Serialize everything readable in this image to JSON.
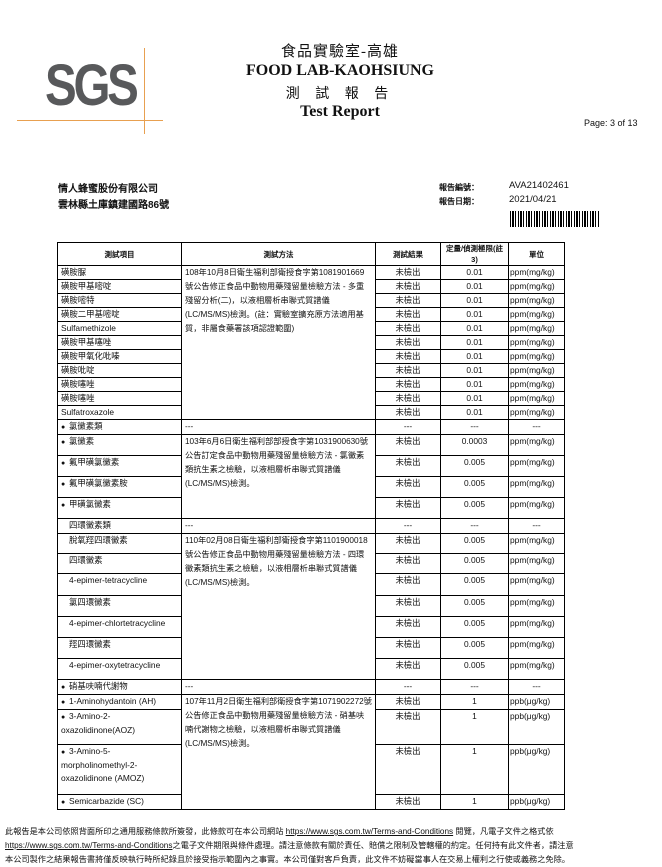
{
  "header": {
    "logo": "SGS",
    "lab_zh": "食品實驗室-高雄",
    "lab_en": "FOOD LAB-KAOHSIUNG",
    "report_zh": "測 試 報 告",
    "report_en": "Test Report",
    "page": "Page: 3 of 13"
  },
  "client": {
    "name": "情人蜂蜜股份有限公司",
    "address": "雲林縣土庫鎮建國路86號"
  },
  "report_info": {
    "number_label": "報告編號：",
    "number": "AVA21402461",
    "date_label": "報告日期：",
    "date": "2021/04/21"
  },
  "table": {
    "headers": [
      "測試項目",
      "測試方法",
      "測試結果",
      "定量/偵測極限(註3)",
      "單位"
    ],
    "groups": [
      {
        "header": null,
        "method": "108年10月8日衛生福利部衛授食字第1081901669號公告修正食品中動物用藥殘留量檢驗方法 - 多重殘留分析(二)，以液相層析串聯式質譜儀(LC/MS/MS)檢測。(註：實驗室擴充原方法適用基質，非屬食藥署該項認證範圍)",
        "rows": [
          {
            "item": "磺胺脲",
            "result": "未檢出",
            "limit": "0.01",
            "unit": "ppm(mg/kg)"
          },
          {
            "item": "磺胺甲基嘧啶",
            "result": "未檢出",
            "limit": "0.01",
            "unit": "ppm(mg/kg)"
          },
          {
            "item": "磺胺嘧特",
            "result": "未檢出",
            "limit": "0.01",
            "unit": "ppm(mg/kg)"
          },
          {
            "item": "磺胺二甲基嘧啶",
            "result": "未檢出",
            "limit": "0.01",
            "unit": "ppm(mg/kg)"
          },
          {
            "item": "Sulfamethizole",
            "result": "未檢出",
            "limit": "0.01",
            "unit": "ppm(mg/kg)"
          },
          {
            "item": "磺胺甲基噻唑",
            "result": "未檢出",
            "limit": "0.01",
            "unit": "ppm(mg/kg)"
          },
          {
            "item": "磺胺甲氧化吡嗪",
            "result": "未檢出",
            "limit": "0.01",
            "unit": "ppm(mg/kg)"
          },
          {
            "item": "磺胺吡啶",
            "result": "未檢出",
            "limit": "0.01",
            "unit": "ppm(mg/kg)"
          },
          {
            "item": "磺胺噻唑",
            "result": "未檢出",
            "limit": "0.01",
            "unit": "ppm(mg/kg)"
          },
          {
            "item": "磺胺噻唑",
            "result": "未檢出",
            "limit": "0.01",
            "unit": "ppm(mg/kg)"
          },
          {
            "item": "Sulfatroxazole",
            "result": "未檢出",
            "limit": "0.01",
            "unit": "ppm(mg/kg)"
          }
        ]
      },
      {
        "header": {
          "item": "氯黴素類",
          "bullet": true,
          "method": "---",
          "result": "---",
          "limit": "---",
          "unit": "---"
        },
        "method": "103年6月6日衛生福利部部授食字第1031900630號公告訂定食品中動物用藥殘留量檢驗方法 - 氯黴素類抗生素之檢驗，以液相層析串聯式質譜儀(LC/MS/MS)檢測。",
        "rows": [
          {
            "item": "氯黴素",
            "bullet": true,
            "result": "未檢出",
            "limit": "0.0003",
            "unit": "ppm(mg/kg)"
          },
          {
            "item": "氟甲磺氯黴素",
            "bullet": true,
            "result": "未檢出",
            "limit": "0.005",
            "unit": "ppm(mg/kg)"
          },
          {
            "item": "氟甲磺氯黴素胺",
            "bullet": true,
            "result": "未檢出",
            "limit": "0.005",
            "unit": "ppm(mg/kg)"
          },
          {
            "item": "甲磺氯黴素",
            "bullet": true,
            "result": "未檢出",
            "limit": "0.005",
            "unit": "ppm(mg/kg)"
          }
        ]
      },
      {
        "header": {
          "item": "四環黴素類",
          "bullet": false,
          "method": "---",
          "result": "---",
          "limit": "---",
          "unit": "---"
        },
        "method": "110年02月08日衛生福利部衛授食字第1101900018號公告修正食品中動物用藥殘留量檢驗方法 - 四環黴素類抗生素之檢驗，以液相層析串聯式質譜儀(LC/MS/MS)檢測。",
        "rows": [
          {
            "item": "脫氧羥四環黴素",
            "result": "未檢出",
            "limit": "0.005",
            "unit": "ppm(mg/kg)"
          },
          {
            "item": "四環黴素",
            "result": "未檢出",
            "limit": "0.005",
            "unit": "ppm(mg/kg)"
          },
          {
            "item": "4-epimer-tetracycline",
            "result": "未檢出",
            "limit": "0.005",
            "unit": "ppm(mg/kg)"
          },
          {
            "item": "氯四環黴素",
            "result": "未檢出",
            "limit": "0.005",
            "unit": "ppm(mg/kg)"
          },
          {
            "item": "4-epimer-chlortetracycline",
            "result": "未檢出",
            "limit": "0.005",
            "unit": "ppm(mg/kg)"
          },
          {
            "item": "羥四環黴素",
            "result": "未檢出",
            "limit": "0.005",
            "unit": "ppm(mg/kg)"
          },
          {
            "item": "4-epimer-oxytetracycline",
            "result": "未檢出",
            "limit": "0.005",
            "unit": "ppm(mg/kg)"
          }
        ]
      },
      {
        "header": {
          "item": "硝基呋喃代謝物",
          "bullet": true,
          "method": "---",
          "result": "---",
          "limit": "---",
          "unit": "---"
        },
        "method": "107年11月2日衛生福利部衛授食字第1071902272號公告修正食品中動物用藥殘留量檢驗方法 - 硝基呋喃代謝物之檢驗，以液相層析串聯式質譜儀(LC/MS/MS)檢測。",
        "rows": [
          {
            "item": "1-Aminohydantoin (AH)",
            "bullet": true,
            "result": "未檢出",
            "limit": "1",
            "unit": "ppb(μg/kg)"
          },
          {
            "item": "3-Amino-2-oxazolidinone(AOZ)",
            "bullet": true,
            "result": "未檢出",
            "limit": "1",
            "unit": "ppb(μg/kg)"
          },
          {
            "item": "3-Amino-5-morpholinomethyl-2-oxazolidinone (AMOZ)",
            "bullet": true,
            "result": "未檢出",
            "limit": "1",
            "unit": "ppb(μg/kg)"
          },
          {
            "item": "Semicarbazide (SC)",
            "bullet": true,
            "result": "未檢出",
            "limit": "1",
            "unit": "ppb(μg/kg)"
          }
        ]
      }
    ]
  },
  "footer": {
    "line1_a": "此報告是本公司依照背面所印之通用服務條款所簽發，此條款可在本公司網站",
    "link": "https://www.sgs.com.tw/Terms-and-Conditions",
    "line1_b": "閱覽，凡電子文件之格式依",
    "line2_b": "之電子文件期限與條件處理。請注意條款有關於責任、賠償之限制及管轄權的約定。任何持有此文件者，請注意",
    "line3": "本公司製作之結果報告書將僅反映執行時所紀錄且於接受指示範圍內之事實。本公司僅對客戶負責，此文件不妨礙當事人在交易上權利之行使或義務之免除。"
  }
}
